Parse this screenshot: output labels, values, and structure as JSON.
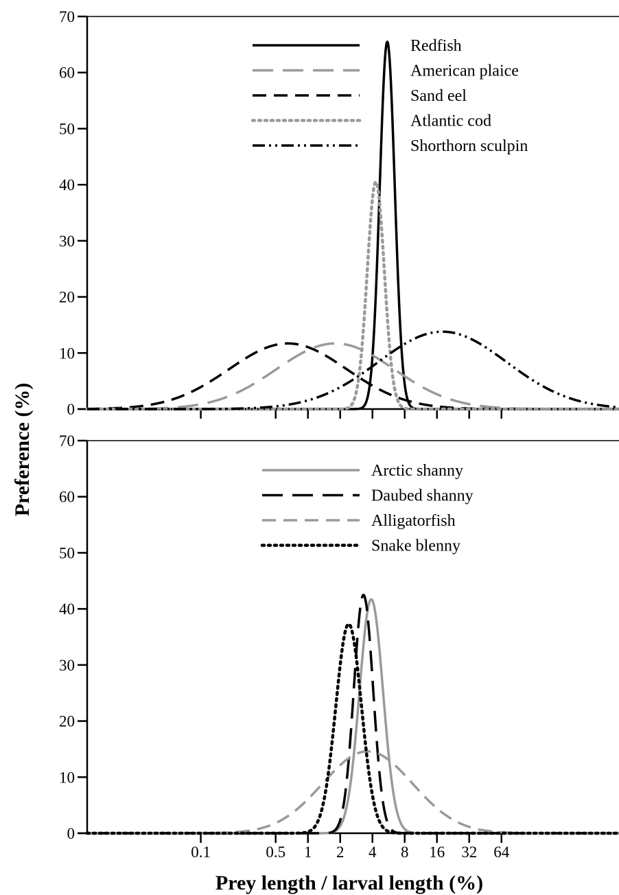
{
  "chart_data": {
    "type": "line",
    "ylabel": "Preference (%)",
    "xlabel": "Prey length / larval length (%)",
    "x_scale": "log",
    "x_ticks": [
      0.1,
      0.5,
      1,
      2,
      4,
      8,
      16,
      32,
      64
    ],
    "x_tick_labels": [
      "0.1",
      "0.5",
      "1",
      "2",
      "4",
      "8",
      "16",
      "32",
      "64"
    ],
    "xlim": [
      0.0087,
      800
    ],
    "panels": [
      {
        "ylim": [
          0,
          70
        ],
        "y_ticks": [
          0,
          10,
          20,
          30,
          40,
          50,
          60,
          70
        ],
        "y_tick_labels": [
          "0",
          "10",
          "20",
          "30",
          "40",
          "50",
          "60",
          "70"
        ],
        "legend_position": "top-center",
        "series": [
          {
            "name": "Redfish",
            "peak_x": 5.5,
            "peak_y": 65.5,
            "spread_log10": 0.07,
            "color": "#000000",
            "style": "solid"
          },
          {
            "name": "American plaice",
            "peak_x": 1.8,
            "peak_y": 11.7,
            "spread_log10": 0.55,
            "color": "#9a9a9a",
            "style": "long-dash"
          },
          {
            "name": "Sand eel",
            "peak_x": 0.65,
            "peak_y": 11.7,
            "spread_log10": 0.55,
            "color": "#000000",
            "style": "dash"
          },
          {
            "name": "Atlantic cod",
            "peak_x": 4.3,
            "peak_y": 40.5,
            "spread_log10": 0.08,
            "color": "#9a9a9a",
            "style": "dotted"
          },
          {
            "name": "Shorthorn sculpin",
            "peak_x": 18,
            "peak_y": 13.8,
            "spread_log10": 0.6,
            "color": "#000000",
            "style": "dash-dot-dot"
          }
        ]
      },
      {
        "ylim": [
          0,
          70
        ],
        "y_ticks": [
          0,
          10,
          20,
          30,
          40,
          50,
          60,
          70
        ],
        "y_tick_labels": [
          "0",
          "10",
          "20",
          "30",
          "40",
          "50",
          "60",
          "70"
        ],
        "legend_position": "top-center",
        "series": [
          {
            "name": "Arctic shanny",
            "peak_x": 3.9,
            "peak_y": 41.7,
            "spread_log10": 0.11,
            "color": "#9a9a9a",
            "style": "solid"
          },
          {
            "name": "Daubed shanny",
            "peak_x": 3.3,
            "peak_y": 42.5,
            "spread_log10": 0.09,
            "color": "#000000",
            "style": "long-dash"
          },
          {
            "name": "Alligatorfish",
            "peak_x": 3.6,
            "peak_y": 14.6,
            "spread_log10": 0.42,
            "color": "#9a9a9a",
            "style": "dash"
          },
          {
            "name": "Snake blenny",
            "peak_x": 2.4,
            "peak_y": 37.3,
            "spread_log10": 0.12,
            "color": "#000000",
            "style": "dotted"
          }
        ]
      }
    ]
  }
}
